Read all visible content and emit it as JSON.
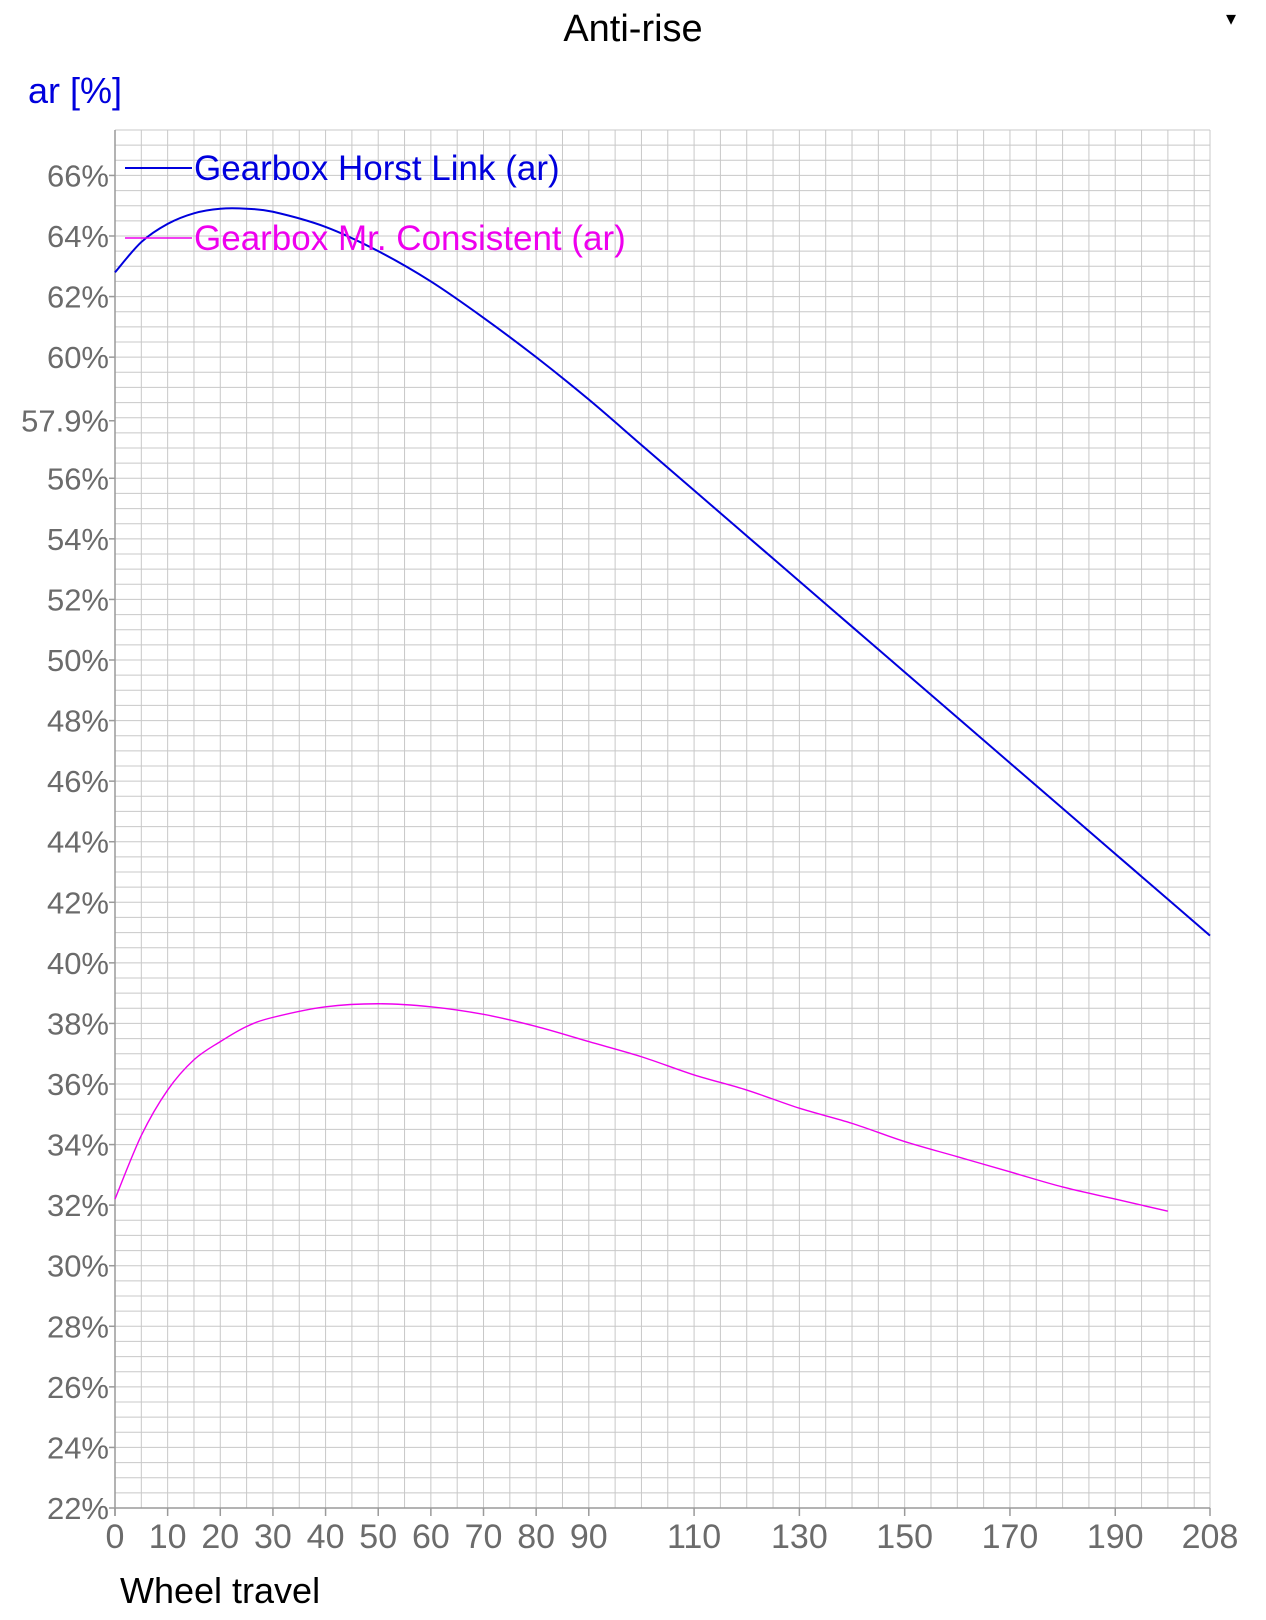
{
  "chart_data": {
    "type": "line",
    "title": "Anti-rise",
    "ylabel": "ar [%]",
    "xlabel": "Wheel travel",
    "xlim": [
      0,
      208
    ],
    "ylim": [
      22,
      67.5
    ],
    "x_ticks": [
      0,
      10,
      20,
      30,
      40,
      50,
      60,
      70,
      80,
      90,
      110,
      130,
      150,
      170,
      190,
      208
    ],
    "y_ticks": [
      {
        "value": 22,
        "label": "22%"
      },
      {
        "value": 24,
        "label": "24%"
      },
      {
        "value": 26,
        "label": "26%"
      },
      {
        "value": 28,
        "label": "28%"
      },
      {
        "value": 30,
        "label": "30%"
      },
      {
        "value": 32,
        "label": "32%"
      },
      {
        "value": 34,
        "label": "34%"
      },
      {
        "value": 36,
        "label": "36%"
      },
      {
        "value": 38,
        "label": "38%"
      },
      {
        "value": 40,
        "label": "40%"
      },
      {
        "value": 42,
        "label": "42%"
      },
      {
        "value": 44,
        "label": "44%"
      },
      {
        "value": 46,
        "label": "46%"
      },
      {
        "value": 48,
        "label": "48%"
      },
      {
        "value": 50,
        "label": "50%"
      },
      {
        "value": 52,
        "label": "52%"
      },
      {
        "value": 54,
        "label": "54%"
      },
      {
        "value": 56,
        "label": "56%"
      },
      {
        "value": 57.9,
        "label": "57.9%"
      },
      {
        "value": 60,
        "label": "60%"
      },
      {
        "value": 62,
        "label": "62%"
      },
      {
        "value": 64,
        "label": "64%"
      },
      {
        "value": 66,
        "label": "66%"
      }
    ],
    "grid": true,
    "legend_position": "top-left",
    "series": [
      {
        "name": "Gearbox Horst Link (ar)",
        "color": "#0000dd",
        "x": [
          0,
          5,
          10,
          15,
          20,
          25,
          30,
          40,
          50,
          60,
          70,
          80,
          90,
          100,
          110,
          120,
          130,
          140,
          150,
          160,
          170,
          180,
          190,
          200,
          208
        ],
        "y": [
          62.8,
          63.8,
          64.4,
          64.75,
          64.9,
          64.9,
          64.8,
          64.3,
          63.5,
          62.5,
          61.3,
          60.0,
          58.6,
          57.1,
          55.6,
          54.1,
          52.6,
          51.1,
          49.6,
          48.1,
          46.6,
          45.1,
          43.6,
          42.1,
          40.9
        ]
      },
      {
        "name": "Gearbox Mr. Consistent (ar)",
        "color": "#ee00ee",
        "x": [
          0,
          5,
          10,
          15,
          20,
          25,
          30,
          40,
          50,
          60,
          70,
          80,
          90,
          100,
          110,
          120,
          130,
          140,
          150,
          160,
          170,
          180,
          190,
          200
        ],
        "y": [
          32.2,
          34.3,
          35.8,
          36.8,
          37.4,
          37.9,
          38.2,
          38.55,
          38.65,
          38.55,
          38.3,
          37.9,
          37.4,
          36.9,
          36.3,
          35.8,
          35.2,
          34.7,
          34.1,
          33.6,
          33.1,
          32.6,
          32.2,
          31.8
        ]
      }
    ]
  }
}
